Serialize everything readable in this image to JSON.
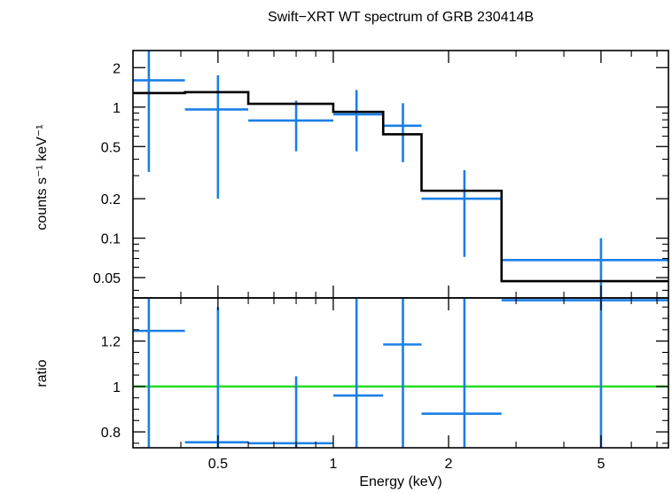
{
  "title": "Swift−XRT WT spectrum of GRB 230414B",
  "colors": {
    "data": "#1a7fe6",
    "model": "#000000",
    "unity": "#22dd22",
    "axes": "#000000"
  },
  "chart_data": [
    {
      "type": "scatter",
      "panel": "spectrum",
      "ylabel": "counts s⁻¹ keV⁻¹",
      "xscale": "log",
      "yscale": "log",
      "xlim": [
        0.3,
        7.5
      ],
      "ylim": [
        0.035,
        2.7
      ],
      "y_ticks": [
        {
          "value": 0.05,
          "label": "0.05"
        },
        {
          "value": 0.1,
          "label": "0.1"
        },
        {
          "value": 0.2,
          "label": "0.2"
        },
        {
          "value": 0.5,
          "label": "0.5"
        },
        {
          "value": 1,
          "label": "1"
        },
        {
          "value": 2,
          "label": "2"
        }
      ],
      "series": [
        {
          "kind": "data",
          "points": [
            {
              "x": 0.33,
              "xlo": 0.3,
              "xhi": 0.41,
              "y": 1.6,
              "ylo": 0.32,
              "yhi": 2.7
            },
            {
              "x": 0.5,
              "xlo": 0.41,
              "xhi": 0.6,
              "y": 0.96,
              "ylo": 0.2,
              "yhi": 1.75
            },
            {
              "x": 0.8,
              "xlo": 0.6,
              "xhi": 1.0,
              "y": 0.79,
              "ylo": 0.46,
              "yhi": 1.12
            },
            {
              "x": 1.15,
              "xlo": 1.0,
              "xhi": 1.35,
              "y": 0.88,
              "ylo": 0.46,
              "yhi": 1.35
            },
            {
              "x": 1.52,
              "xlo": 1.35,
              "xhi": 1.7,
              "y": 0.72,
              "ylo": 0.38,
              "yhi": 1.07
            },
            {
              "x": 2.2,
              "xlo": 1.7,
              "xhi": 2.75,
              "y": 0.2,
              "ylo": 0.072,
              "yhi": 0.33
            },
            {
              "x": 5.0,
              "xlo": 2.75,
              "xhi": 7.5,
              "y": 0.068,
              "ylo": 0.035,
              "yhi": 0.1
            }
          ]
        },
        {
          "kind": "model",
          "step": [
            {
              "x0": 0.3,
              "x1": 0.41,
              "y": 1.28
            },
            {
              "x0": 0.41,
              "x1": 0.6,
              "y": 1.3
            },
            {
              "x0": 0.6,
              "x1": 1.0,
              "y": 1.06
            },
            {
              "x0": 1.0,
              "x1": 1.35,
              "y": 0.92
            },
            {
              "x0": 1.35,
              "x1": 1.7,
              "y": 0.62
            },
            {
              "x0": 1.7,
              "x1": 2.75,
              "y": 0.23
            },
            {
              "x0": 2.75,
              "x1": 7.5,
              "y": 0.047
            }
          ]
        }
      ]
    },
    {
      "type": "scatter",
      "panel": "ratio",
      "ylabel": "ratio",
      "xlabel": "Energy (keV)",
      "xscale": "log",
      "yscale": "linear",
      "xlim": [
        0.3,
        7.5
      ],
      "ylim": [
        0.73,
        1.39
      ],
      "x_ticks": [
        {
          "value": 0.5,
          "label": "0.5"
        },
        {
          "value": 1,
          "label": "1"
        },
        {
          "value": 2,
          "label": "2"
        },
        {
          "value": 5,
          "label": "5"
        }
      ],
      "y_ticks": [
        {
          "value": 0.8,
          "label": "0.8"
        },
        {
          "value": 1,
          "label": "1"
        },
        {
          "value": 1.2,
          "label": "1.2"
        }
      ],
      "unity_line": 1,
      "series": [
        {
          "kind": "data",
          "points": [
            {
              "x": 0.33,
              "xlo": 0.3,
              "xhi": 0.41,
              "y": 1.245,
              "ylo": 0.73,
              "yhi": 1.39
            },
            {
              "x": 0.5,
              "xlo": 0.41,
              "xhi": 0.6,
              "y": 0.754,
              "ylo": 0.73,
              "yhi": 1.35
            },
            {
              "x": 0.8,
              "xlo": 0.6,
              "xhi": 1.0,
              "y": 0.75,
              "ylo": 0.73,
              "yhi": 1.045
            },
            {
              "x": 1.15,
              "xlo": 1.0,
              "xhi": 1.35,
              "y": 0.96,
              "ylo": 0.73,
              "yhi": 1.39
            },
            {
              "x": 1.52,
              "xlo": 1.35,
              "xhi": 1.7,
              "y": 1.185,
              "ylo": 0.73,
              "yhi": 1.39
            },
            {
              "x": 2.2,
              "xlo": 1.7,
              "xhi": 2.75,
              "y": 0.88,
              "ylo": 0.73,
              "yhi": 1.39
            },
            {
              "x": 5.0,
              "xlo": 2.75,
              "xhi": 7.5,
              "y": 1.38,
              "ylo": 0.73,
              "yhi": 1.39
            }
          ]
        }
      ]
    }
  ]
}
